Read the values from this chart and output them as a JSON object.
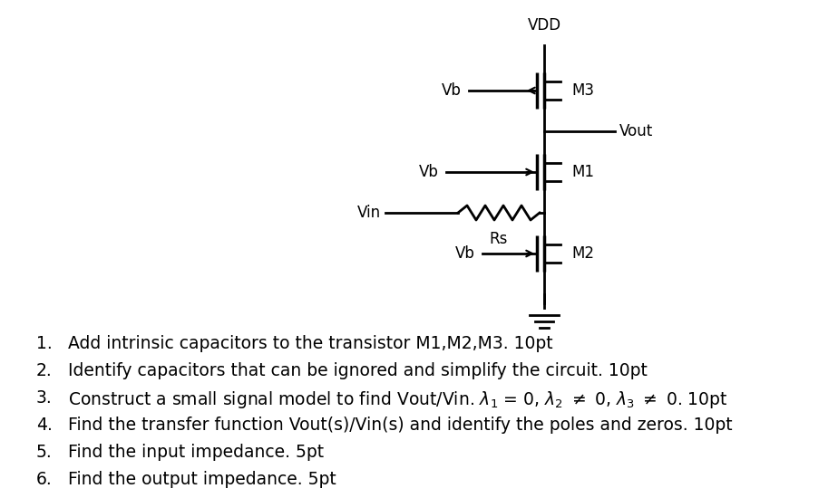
{
  "bg_color": "#ffffff",
  "circuit": {
    "vdd_label": "VDD",
    "vout_label": "Vout",
    "vin_label": "Vin",
    "rs_label": "Rs",
    "m1_label": "M1",
    "m2_label": "M2",
    "m3_label": "M3"
  },
  "list_items": [
    "Add intrinsic capacitors to the transistor M1,M2,M3. 10pt",
    "Identify capacitors that can be ignored and simplify the circuit. 10pt",
    "MATH_ITEM",
    "Find the transfer function Vout(s)/Vin(s) and identify the poles and zeros. 10pt",
    "Find the input impedance. 5pt",
    "Find the output impedance. 5pt"
  ],
  "list_fontsize": 13.5,
  "circuit_fontsize": 12
}
